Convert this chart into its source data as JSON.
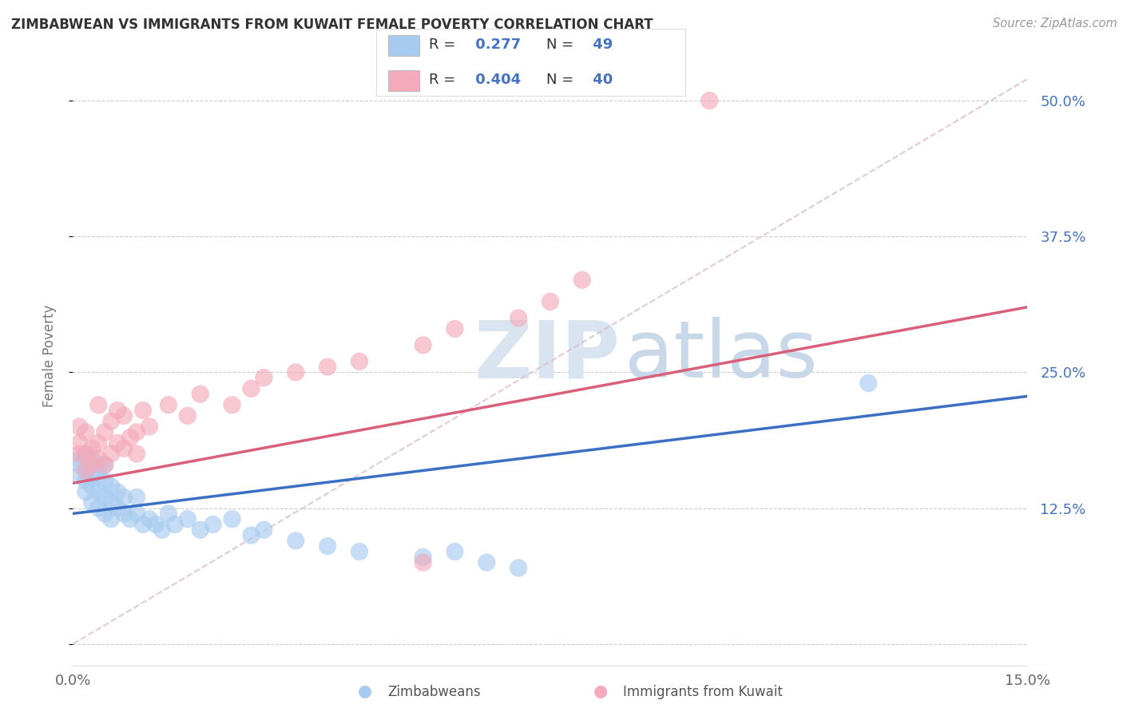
{
  "title": "ZIMBABWEAN VS IMMIGRANTS FROM KUWAIT FEMALE POVERTY CORRELATION CHART",
  "source": "Source: ZipAtlas.com",
  "xlabel_zimbabweans": "Zimbabweans",
  "xlabel_kuwait": "Immigrants from Kuwait",
  "ylabel": "Female Poverty",
  "xlim": [
    0.0,
    0.15
  ],
  "ylim": [
    -0.02,
    0.55
  ],
  "xticks": [
    0.0,
    0.05,
    0.1,
    0.15
  ],
  "xtick_labels": [
    "0.0%",
    "",
    "",
    "15.0%"
  ],
  "yticks": [
    0.0,
    0.125,
    0.25,
    0.375,
    0.5
  ],
  "ytick_labels": [
    "",
    "12.5%",
    "25.0%",
    "37.5%",
    "50.0%"
  ],
  "blue_R": 0.277,
  "blue_N": 49,
  "pink_R": 0.404,
  "pink_N": 40,
  "blue_color": "#A8CCF0",
  "pink_color": "#F4AABB",
  "blue_line_color": "#3A6FC4",
  "pink_line_color": "#D9607A",
  "dash_line_color": "#DDBBCC",
  "watermark_zip_color": "#D8E4F0",
  "watermark_atlas_color": "#C8D8E8",
  "blue_scatter_x": [
    0.001,
    0.001,
    0.001,
    0.002,
    0.002,
    0.002,
    0.002,
    0.003,
    0.003,
    0.003,
    0.003,
    0.004,
    0.004,
    0.004,
    0.004,
    0.005,
    0.005,
    0.005,
    0.005,
    0.006,
    0.006,
    0.006,
    0.007,
    0.007,
    0.008,
    0.008,
    0.009,
    0.01,
    0.01,
    0.011,
    0.012,
    0.013,
    0.014,
    0.015,
    0.016,
    0.018,
    0.02,
    0.022,
    0.025,
    0.028,
    0.03,
    0.035,
    0.04,
    0.045,
    0.055,
    0.06,
    0.065,
    0.07,
    0.125
  ],
  "blue_scatter_y": [
    0.155,
    0.165,
    0.17,
    0.14,
    0.15,
    0.16,
    0.175,
    0.13,
    0.145,
    0.155,
    0.17,
    0.125,
    0.14,
    0.155,
    0.165,
    0.12,
    0.135,
    0.15,
    0.165,
    0.115,
    0.13,
    0.145,
    0.125,
    0.14,
    0.12,
    0.135,
    0.115,
    0.12,
    0.135,
    0.11,
    0.115,
    0.11,
    0.105,
    0.12,
    0.11,
    0.115,
    0.105,
    0.11,
    0.115,
    0.1,
    0.105,
    0.095,
    0.09,
    0.085,
    0.08,
    0.085,
    0.075,
    0.07,
    0.24
  ],
  "pink_scatter_x": [
    0.001,
    0.001,
    0.001,
    0.002,
    0.002,
    0.002,
    0.003,
    0.003,
    0.004,
    0.004,
    0.004,
    0.005,
    0.005,
    0.006,
    0.006,
    0.007,
    0.007,
    0.008,
    0.008,
    0.009,
    0.01,
    0.01,
    0.011,
    0.012,
    0.015,
    0.018,
    0.02,
    0.025,
    0.028,
    0.03,
    0.035,
    0.04,
    0.045,
    0.055,
    0.06,
    0.07,
    0.075,
    0.08,
    0.1,
    0.055
  ],
  "pink_scatter_y": [
    0.175,
    0.185,
    0.2,
    0.16,
    0.175,
    0.195,
    0.165,
    0.18,
    0.17,
    0.185,
    0.22,
    0.165,
    0.195,
    0.175,
    0.205,
    0.185,
    0.215,
    0.18,
    0.21,
    0.19,
    0.175,
    0.195,
    0.215,
    0.2,
    0.22,
    0.21,
    0.23,
    0.22,
    0.235,
    0.245,
    0.25,
    0.255,
    0.26,
    0.275,
    0.29,
    0.3,
    0.315,
    0.335,
    0.5,
    0.075
  ],
  "blue_line_x0": 0.0,
  "blue_line_y0": 0.12,
  "blue_line_x1": 0.15,
  "blue_line_y1": 0.228,
  "pink_line_x0": 0.0,
  "pink_line_y0": 0.148,
  "pink_line_x1": 0.15,
  "pink_line_y1": 0.31
}
